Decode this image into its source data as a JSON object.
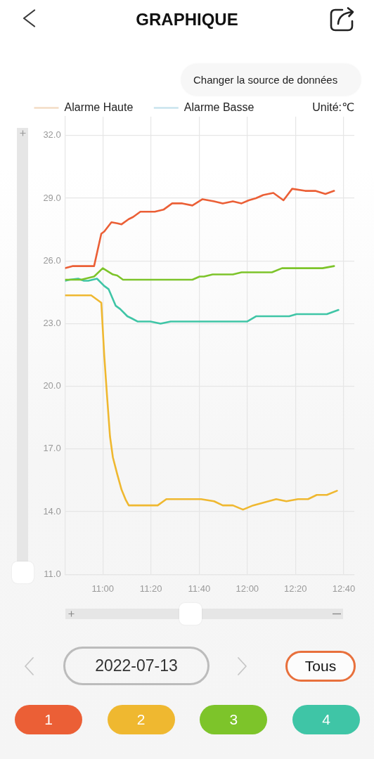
{
  "chart_data": {
    "type": "line",
    "title": "GRAPHIQUE",
    "subtitle": "2022-07-13",
    "ylabel": "Unité:℃",
    "annotations": [
      "Changer la source de données",
      "Tous"
    ],
    "xlim": [
      10.74,
      12.74
    ],
    "xticks": [
      {
        "value": 11,
        "label": "11:00"
      },
      {
        "value": 11.333,
        "label": "11:20"
      },
      {
        "value": 11.667,
        "label": "11:40"
      },
      {
        "value": 12,
        "label": "12:00"
      },
      {
        "value": 12.333,
        "label": "12:20"
      },
      {
        "value": 12.667,
        "label": "12:40"
      }
    ],
    "ylim": [
      11,
      32.9
    ],
    "yticks": [
      {
        "value": 11,
        "label": "11.0"
      },
      {
        "value": 14,
        "label": "14.0"
      },
      {
        "value": 17,
        "label": "17.0"
      },
      {
        "value": 20,
        "label": "20.0"
      },
      {
        "value": 23,
        "label": "23.0"
      },
      {
        "value": 26,
        "label": "26.0"
      },
      {
        "value": 29,
        "label": "29.0"
      },
      {
        "value": 32,
        "label": "32.0"
      }
    ],
    "grid": true,
    "legend": "top left",
    "series": [
      {
        "name": "Alarme Haute",
        "color": "#f3dcc5"
      },
      {
        "name": "Alarme Basse",
        "color": "#c8e3ee"
      },
      {
        "name": "1",
        "color": "#eb5f36",
        "x": [
          10.74,
          10.79,
          10.94,
          10.99,
          11.01,
          11.06,
          11.1,
          11.13,
          11.18,
          11.21,
          11.26,
          11.36,
          11.42,
          11.48,
          11.55,
          11.62,
          11.69,
          11.77,
          11.83,
          11.9,
          11.96,
          12.01,
          12.06,
          12.11,
          12.18,
          12.25,
          12.31,
          12.4,
          12.47,
          12.54,
          12.6
        ],
        "values": [
          25.65,
          25.75,
          25.75,
          27.3,
          27.4,
          27.85,
          27.8,
          27.75,
          28.0,
          28.1,
          28.35,
          28.35,
          28.45,
          28.75,
          28.75,
          28.65,
          28.95,
          28.85,
          28.75,
          28.85,
          28.75,
          28.9,
          29.0,
          29.15,
          29.25,
          28.9,
          29.45,
          29.35,
          29.35,
          29.2,
          29.35
        ]
      },
      {
        "name": "2",
        "color": "#efb830",
        "x": [
          10.74,
          10.92,
          10.99,
          11.01,
          11.03,
          11.05,
          11.07,
          11.1,
          11.13,
          11.16,
          11.18,
          11.38,
          11.44,
          11.68,
          11.77,
          11.83,
          11.9,
          11.97,
          12.04,
          12.12,
          12.2,
          12.27,
          12.35,
          12.42,
          12.48,
          12.55,
          12.62
        ],
        "values": [
          24.35,
          24.35,
          24.0,
          21.5,
          19.5,
          17.6,
          16.6,
          15.8,
          15.05,
          14.55,
          14.3,
          14.3,
          14.6,
          14.6,
          14.5,
          14.3,
          14.3,
          14.1,
          14.3,
          14.45,
          14.6,
          14.5,
          14.6,
          14.6,
          14.8,
          14.8,
          15.0
        ]
      },
      {
        "name": "3",
        "color": "#7dc42a",
        "x": [
          10.74,
          10.85,
          10.94,
          11.0,
          11.07,
          11.1,
          11.14,
          11.62,
          11.67,
          11.7,
          11.76,
          11.9,
          11.96,
          12.17,
          12.24,
          12.52,
          12.6
        ],
        "values": [
          25.1,
          25.1,
          25.25,
          25.65,
          25.35,
          25.3,
          25.1,
          25.1,
          25.25,
          25.25,
          25.35,
          25.35,
          25.45,
          25.45,
          25.65,
          25.65,
          25.75
        ]
      },
      {
        "name": "4",
        "color": "#3fc5a6",
        "x": [
          10.74,
          10.77,
          10.83,
          10.87,
          10.9,
          10.96,
          11.01,
          11.04,
          11.09,
          11.12,
          11.17,
          11.2,
          11.24,
          11.33,
          11.4,
          11.47,
          12.0,
          12.06,
          12.29,
          12.34,
          12.55,
          12.63
        ],
        "values": [
          25.05,
          25.1,
          25.15,
          25.05,
          25.05,
          25.15,
          24.8,
          24.65,
          23.85,
          23.7,
          23.35,
          23.25,
          23.1,
          23.1,
          23.0,
          23.1,
          23.1,
          23.35,
          23.35,
          23.45,
          23.45,
          23.65
        ]
      }
    ]
  }
}
